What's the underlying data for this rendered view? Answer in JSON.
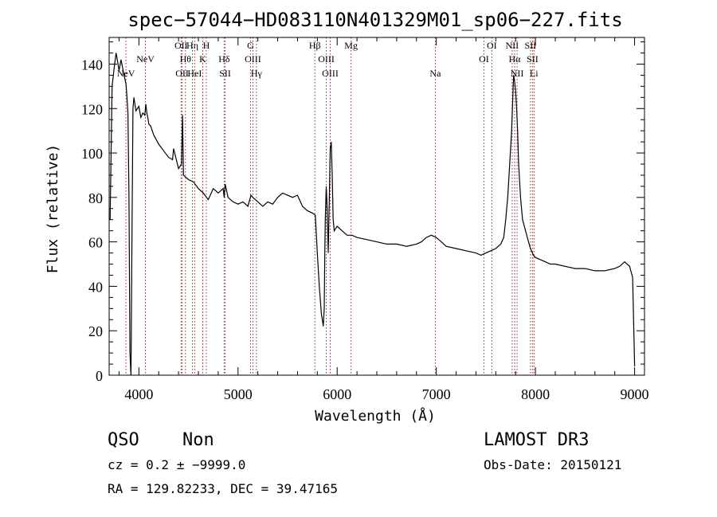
{
  "chart_data": {
    "type": "line",
    "title": "spec−57044−HD083110N401329M01_sp06−227.fits",
    "xlabel": "Wavelength (Å)",
    "ylabel": "Flux (relative)",
    "xlim": [
      3700,
      9100
    ],
    "ylim": [
      0,
      152
    ],
    "x_ticks": [
      4000,
      5000,
      6000,
      7000,
      8000,
      9000
    ],
    "y_ticks": [
      0,
      20,
      40,
      60,
      80,
      100,
      120,
      140
    ],
    "grid": false,
    "series": [
      {
        "x": [
          3710,
          3730,
          3750,
          3770,
          3790,
          3800,
          3820,
          3850,
          3870,
          3880,
          3890,
          3900,
          3910,
          3920,
          3930,
          3940,
          3950,
          3970,
          4000,
          4020,
          4040,
          4060,
          4070,
          4080,
          4090,
          4100,
          4120,
          4150,
          4200,
          4250,
          4300,
          4340,
          4350,
          4400,
          4430,
          4440,
          4450,
          4500,
          4550,
          4600,
          4650,
          4700,
          4750,
          4800,
          4850,
          4860,
          4870,
          4900,
          4950,
          5000,
          5050,
          5100,
          5130,
          5150,
          5200,
          5250,
          5300,
          5350,
          5400,
          5450,
          5500,
          5550,
          5600,
          5650,
          5700,
          5750,
          5780,
          5800,
          5820,
          5840,
          5850,
          5860,
          5870,
          5875,
          5880,
          5890,
          5900,
          5910,
          5920,
          5930,
          5940,
          5950,
          5960,
          5970,
          6000,
          6050,
          6100,
          6150,
          6200,
          6300,
          6400,
          6500,
          6600,
          6700,
          6800,
          6850,
          6900,
          6950,
          7000,
          7050,
          7100,
          7200,
          7300,
          7400,
          7450,
          7500,
          7550,
          7600,
          7650,
          7680,
          7700,
          7720,
          7740,
          7760,
          7780,
          7790,
          7800,
          7810,
          7820,
          7830,
          7850,
          7870,
          7900,
          7930,
          7950,
          7980,
          8000,
          8050,
          8100,
          8150,
          8200,
          8300,
          8400,
          8500,
          8600,
          8700,
          8800,
          8850,
          8900,
          8950,
          8980,
          9000
        ],
        "y": [
          70,
          130,
          138,
          145,
          140,
          137,
          142,
          135,
          131,
          125,
          118,
          80,
          10,
          0,
          60,
          120,
          125,
          119,
          121,
          116,
          118,
          117,
          122,
          118,
          116,
          113,
          112,
          108,
          104,
          101,
          98,
          97,
          102,
          93,
          95,
          117,
          90,
          88,
          87,
          84,
          82,
          79,
          84,
          82,
          84,
          80,
          86,
          80,
          78,
          77,
          78,
          76,
          81,
          80,
          78,
          76,
          78,
          77,
          80,
          82,
          81,
          80,
          81,
          76,
          74,
          73,
          72,
          55,
          40,
          28,
          25,
          22,
          30,
          55,
          70,
          85,
          74,
          55,
          78,
          102,
          105,
          90,
          70,
          65,
          67,
          65,
          63,
          63,
          62,
          61,
          60,
          59,
          59,
          58,
          59,
          60,
          62,
          63,
          62,
          60,
          58,
          57,
          56,
          55,
          54,
          55,
          56,
          57,
          59,
          62,
          70,
          80,
          95,
          110,
          135,
          132,
          128,
          120,
          110,
          95,
          80,
          70,
          65,
          60,
          57,
          54,
          53,
          52,
          51,
          50,
          50,
          49,
          48,
          48,
          47,
          47,
          48,
          49,
          51,
          49,
          44,
          4
        ]
      }
    ],
    "line_markers": [
      {
        "name": "NeV",
        "x": 3870,
        "row": 2
      },
      {
        "name": "NeV",
        "x": 4066,
        "row": 1
      },
      {
        "name": "OII",
        "x": 4426,
        "row": 0
      },
      {
        "name": "OII",
        "x": 4436,
        "row": 2
      },
      {
        "name": "Hθ",
        "x": 4470,
        "row": 1
      },
      {
        "name": "Hη",
        "x": 4540,
        "row": 0
      },
      {
        "name": "HeI",
        "x": 4563,
        "row": 2
      },
      {
        "name": "H",
        "x": 4680,
        "row": 0
      },
      {
        "name": "K",
        "x": 4644,
        "row": 1
      },
      {
        "name": "Hδ",
        "x": 4860,
        "row": 1
      },
      {
        "name": "SII",
        "x": 4870,
        "row": 2
      },
      {
        "name": "G",
        "x": 5126,
        "row": 0
      },
      {
        "name": "OIII",
        "x": 5150,
        "row": 1
      },
      {
        "name": "Hγ",
        "x": 5185,
        "row": 2
      },
      {
        "name": "Hβ",
        "x": 5775,
        "row": 0
      },
      {
        "name": "OIII",
        "x": 5890,
        "row": 1
      },
      {
        "name": "OIII",
        "x": 5930,
        "row": 2
      },
      {
        "name": "Mg",
        "x": 6140,
        "row": 0
      },
      {
        "name": "Na",
        "x": 6990,
        "row": 2
      },
      {
        "name": "OI",
        "x": 7560,
        "row": 0
      },
      {
        "name": "OI",
        "x": 7480,
        "row": 1
      },
      {
        "name": "NII",
        "x": 7765,
        "row": 0
      },
      {
        "name": "Hα",
        "x": 7790,
        "row": 1
      },
      {
        "name": "NII",
        "x": 7815,
        "row": 2
      },
      {
        "name": "SII",
        "x": 7950,
        "row": 0
      },
      {
        "name": "SII",
        "x": 7970,
        "row": 1
      },
      {
        "name": "Li",
        "x": 7985,
        "row": 2
      }
    ]
  },
  "info": {
    "class": "QSO",
    "subclass": "Non",
    "survey": "LAMOST DR3",
    "cz": "cz = 0.2 ± −9999.0",
    "obs_date": "Obs-Date: 20150121",
    "coords": "RA = 129.82233, DEC =  39.47165"
  },
  "colors": {
    "spectrum": "#000000",
    "marker_line": "#b22222",
    "axis": "#000000"
  }
}
